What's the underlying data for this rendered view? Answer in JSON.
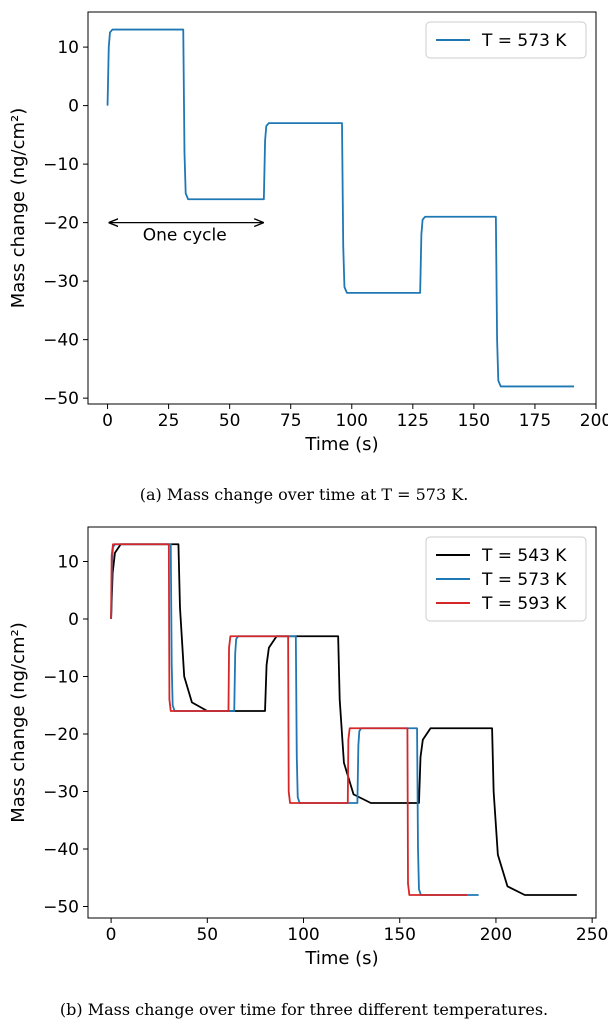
{
  "chart_data": [
    {
      "type": "line",
      "caption": "(a) Mass change over time at T = 573 K.",
      "xlabel": "Time (s)",
      "ylabel": "Mass change (ng/cm²)",
      "xlim": [
        -8,
        200
      ],
      "ylim": [
        -51,
        16
      ],
      "xticks": [
        0,
        25,
        50,
        75,
        100,
        125,
        150,
        175,
        200
      ],
      "yticks": [
        10,
        0,
        -10,
        -20,
        -30,
        -40,
        -50
      ],
      "grid": false,
      "legend_position": "top-right",
      "annotation": {
        "text": "One cycle",
        "arrow_from": [
          0,
          -20
        ],
        "arrow_to": [
          64,
          -20
        ]
      },
      "series": [
        {
          "name": "T = 573 K",
          "color": "#1f77b4",
          "x": [
            0,
            0.5,
            1,
            2,
            31,
            31.5,
            32,
            33,
            64,
            64.5,
            65,
            66,
            96,
            96.5,
            97,
            98,
            128,
            128.5,
            129,
            130,
            159,
            159.5,
            160,
            161,
            191
          ],
          "y": [
            0,
            10,
            12.5,
            13,
            13,
            -8,
            -15,
            -16,
            -16,
            -6,
            -3.5,
            -3,
            -3,
            -24,
            -31,
            -32,
            -32,
            -22,
            -19.5,
            -19,
            -19,
            -40,
            -47,
            -48,
            -48
          ]
        }
      ]
    },
    {
      "type": "line",
      "caption": "(b) Mass change over time for three different temperatures.",
      "xlabel": "Time (s)",
      "ylabel": "Mass change (ng/cm²)",
      "xlim": [
        -12,
        252
      ],
      "ylim": [
        -52,
        16
      ],
      "xticks": [
        0,
        50,
        100,
        150,
        200,
        250
      ],
      "yticks": [
        10,
        0,
        -10,
        -20,
        -30,
        -40,
        -50
      ],
      "grid": false,
      "legend_position": "top-right",
      "series": [
        {
          "name": "T = 543 K",
          "color": "#000000",
          "x": [
            0,
            0.8,
            2,
            5,
            35,
            35.8,
            38,
            42,
            50,
            80,
            80.8,
            82,
            86,
            118,
            118.8,
            121,
            126,
            135,
            160,
            160.8,
            162,
            166,
            198,
            198.8,
            201,
            206,
            215,
            242
          ],
          "y": [
            0,
            8,
            11.5,
            13,
            13,
            2,
            -10,
            -14.5,
            -16,
            -16,
            -8,
            -5,
            -3,
            -3,
            -14,
            -25,
            -30.5,
            -32,
            -32,
            -24,
            -21,
            -19,
            -19,
            -30,
            -41,
            -46.5,
            -48,
            -48
          ]
        },
        {
          "name": "T = 573 K",
          "color": "#1f77b4",
          "x": [
            0,
            0.5,
            1,
            2,
            31,
            31.5,
            32,
            33,
            64,
            64.5,
            65,
            66,
            96,
            96.5,
            97,
            98,
            128,
            128.5,
            129,
            130,
            159,
            159.5,
            160,
            161,
            191
          ],
          "y": [
            0,
            10,
            12.5,
            13,
            13,
            -8,
            -15,
            -16,
            -16,
            -6,
            -3.5,
            -3,
            -3,
            -24,
            -31,
            -32,
            -32,
            -22,
            -19.5,
            -19,
            -19,
            -40,
            -47,
            -48,
            -48
          ]
        },
        {
          "name": "T = 593 K",
          "color": "#d62728",
          "x": [
            0,
            0.3,
            1,
            30,
            30.3,
            31,
            61,
            61.3,
            62,
            92,
            92.3,
            93,
            123,
            123.3,
            124,
            154,
            154.3,
            155,
            185
          ],
          "y": [
            0,
            11,
            13,
            13,
            -14,
            -16,
            -16,
            -5,
            -3,
            -3,
            -30,
            -32,
            -32,
            -21,
            -19,
            -19,
            -46,
            -48,
            -48
          ]
        }
      ]
    }
  ]
}
